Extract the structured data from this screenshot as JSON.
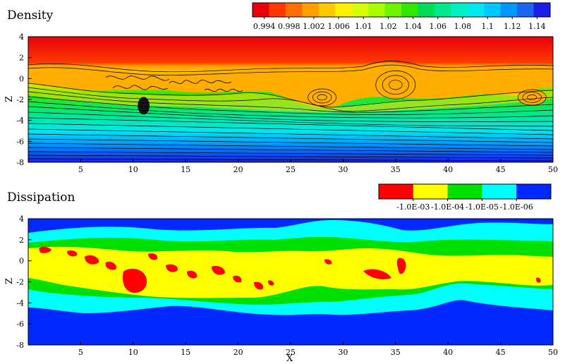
{
  "chart_data": [
    {
      "type": "heatmap",
      "title": "Density",
      "xlabel": "",
      "ylabel": "Z",
      "xlim": [
        0,
        50
      ],
      "ylim": [
        -8,
        4
      ],
      "xticks": [
        5,
        10,
        15,
        20,
        25,
        30,
        35,
        40,
        45,
        50
      ],
      "yticks": [
        4,
        2,
        0,
        -2,
        -4,
        -6,
        -8
      ],
      "colorbar": {
        "colors": [
          "#e8000a",
          "#ff3a00",
          "#ff6e00",
          "#ffa000",
          "#ffc800",
          "#ffef00",
          "#d7ff00",
          "#a8ff00",
          "#6cf500",
          "#33e600",
          "#00dd55",
          "#00e88e",
          "#00f0c5",
          "#00e8f0",
          "#00c8ff",
          "#0096ff",
          "#1c64f2",
          "#1a1ee6"
        ],
        "tick_labels": [
          "0.994",
          "0.998",
          "1.002",
          "1.006",
          "1.01",
          "1.02",
          "1.04",
          "1.06",
          "1.08",
          "1.1",
          "1.12",
          "1.14"
        ]
      },
      "vortex_centers_x": [
        11,
        28,
        35,
        48
      ]
    },
    {
      "type": "heatmap",
      "title": "Dissipation",
      "xlabel": "X",
      "ylabel": "Z",
      "xlim": [
        0,
        50
      ],
      "ylim": [
        -8,
        4
      ],
      "xticks": [
        5,
        10,
        15,
        20,
        25,
        30,
        35,
        40,
        45,
        50
      ],
      "yticks": [
        4,
        2,
        0,
        -2,
        -4,
        -6,
        -8
      ],
      "colorbar": {
        "colors": [
          "#ff0000",
          "#ffff00",
          "#00e000",
          "#00ffff",
          "#0028ff"
        ],
        "tick_labels": [
          "-1.0E-03",
          "-1.0E-04",
          "-1.0E-05",
          "-1.0E-06"
        ]
      }
    }
  ]
}
